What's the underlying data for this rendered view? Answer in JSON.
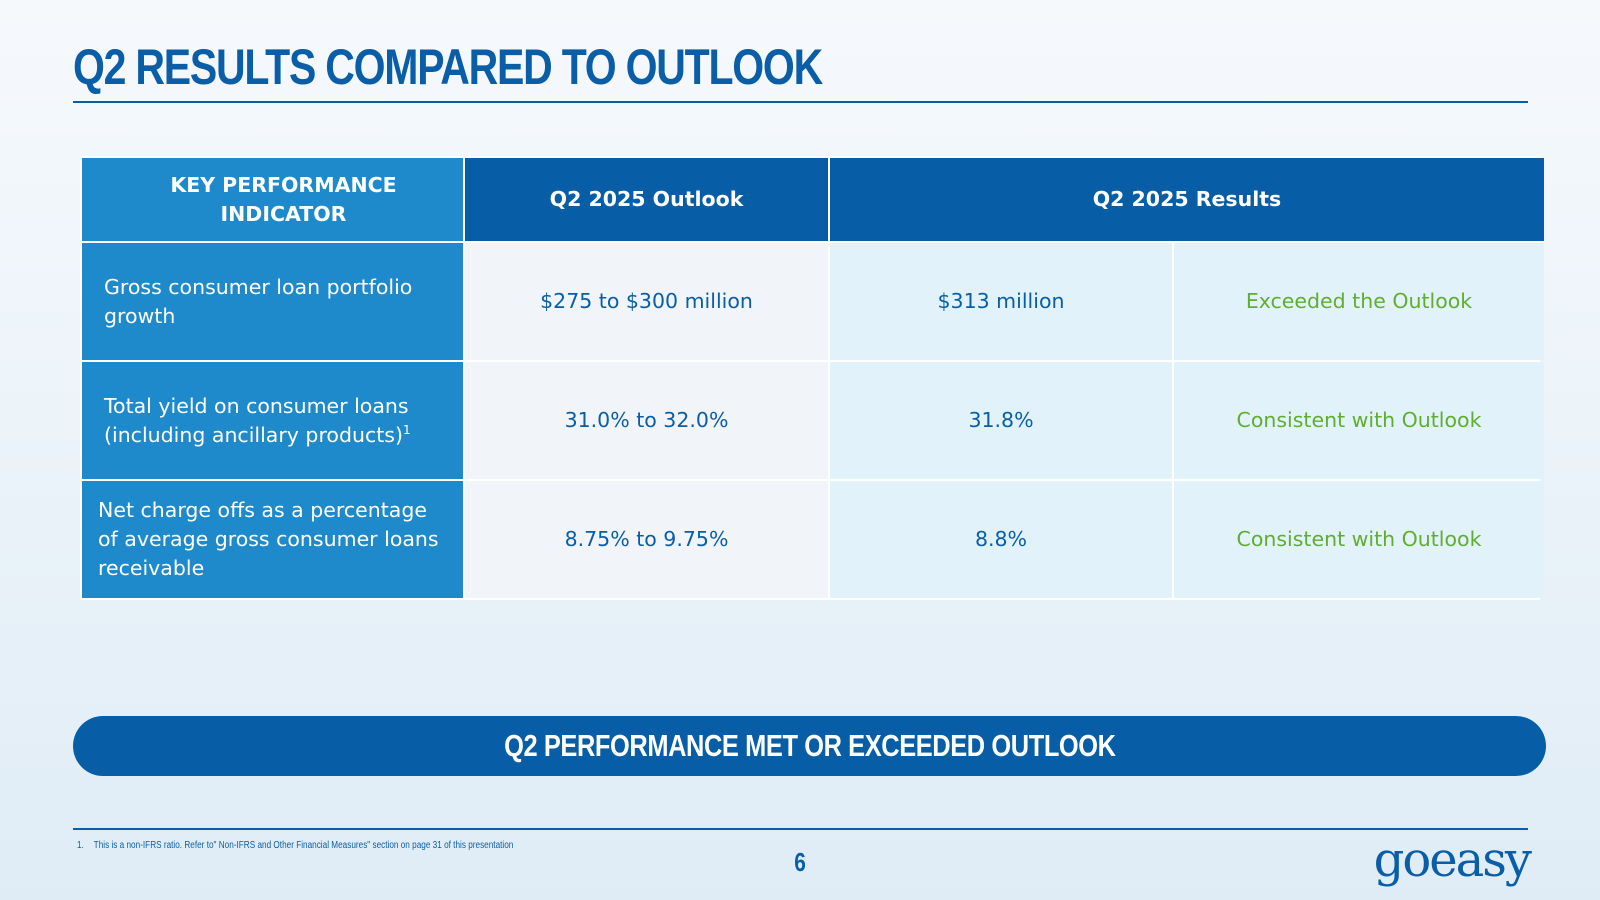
{
  "slide": {
    "title": "Q2 RESULTS COMPARED TO OUTLOOK",
    "page_number": "6",
    "banner": "Q2 PERFORMANCE MET OR EXCEEDED OUTLOOK",
    "footnote": {
      "number": "1.",
      "text": "This is a non-IFRS ratio. Refer to\" Non-IFRS and Other Financial Measures\" section on page 31 of this presentation"
    },
    "logo_text": "goeasy"
  },
  "table": {
    "headers": {
      "kpi": "KEY PERFORMANCE INDICATOR",
      "outlook": "Q2 2025 Outlook",
      "results": "Q2 2025 Results"
    },
    "rows": [
      {
        "kpi": "Gross consumer loan portfolio growth",
        "kpi_sup": "",
        "outlook": "$275 to $300 million",
        "result": "$313 million",
        "status": "Exceeded the Outlook"
      },
      {
        "kpi": "Total yield on consumer loans (including ancillary products)",
        "kpi_sup": "1",
        "outlook": "31.0% to 32.0%",
        "result": "31.8%",
        "status": "Consistent with Outlook"
      },
      {
        "kpi": "Net charge offs as a percentage of average gross consumer loans receivable",
        "kpi_sup": "",
        "outlook": "8.75% to 9.75%",
        "result": "8.8%",
        "status": "Consistent with Outlook"
      }
    ]
  },
  "colors": {
    "brand_blue": "#0a5ea8",
    "light_blue": "#1f8acb",
    "status_green": "#5fae2e"
  }
}
